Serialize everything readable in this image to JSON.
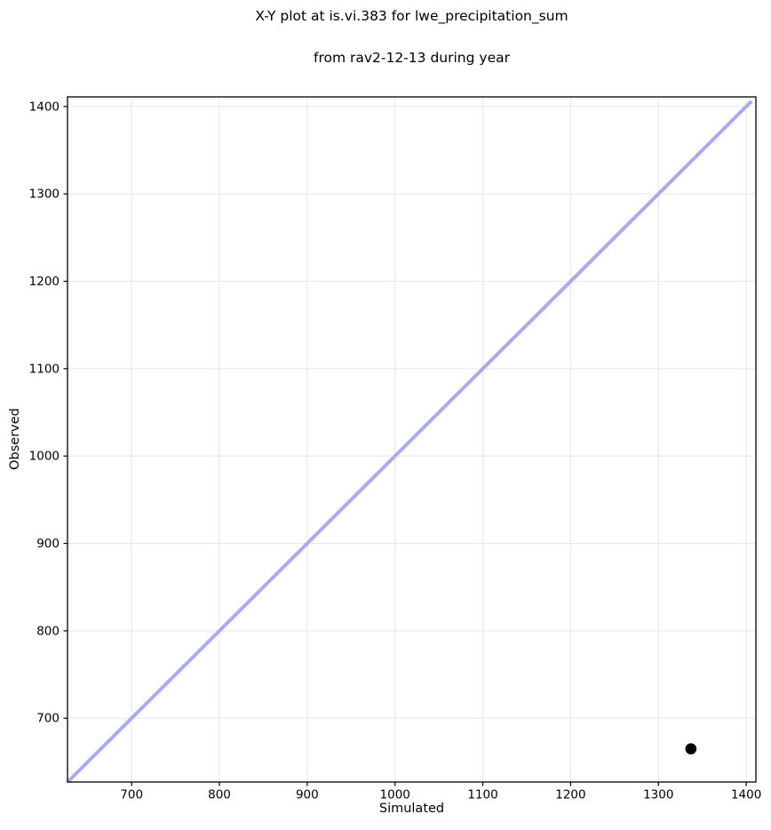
{
  "figure": {
    "title_lines": [
      "X-Y plot at is.vi.383 for lwe_precipitation_sum",
      "from rav2-12-13 during year"
    ]
  },
  "chart_data": {
    "type": "scatter",
    "title": "X-Y plot at is.vi.383 for lwe_precipitation_sum\nfrom rav2-12-13 during year",
    "xlabel": "Simulated",
    "ylabel": "Observed",
    "xlim": [
      627,
      1411
    ],
    "ylim": [
      627,
      1411
    ],
    "xticks": [
      700,
      800,
      900,
      1000,
      1100,
      1200,
      1300,
      1400
    ],
    "yticks": [
      700,
      800,
      900,
      1000,
      1100,
      1200,
      1300,
      1400
    ],
    "grid": true,
    "legend": "none",
    "series": [
      {
        "name": "identity-line",
        "type": "line",
        "x": [
          627,
          1406
        ],
        "y": [
          627,
          1406
        ],
        "color": "#a8abf3",
        "line_width": 4
      },
      {
        "name": "observations",
        "type": "scatter",
        "points": [
          [
            1337,
            665
          ]
        ],
        "color": "#000000",
        "marker_radius": 6.3
      }
    ],
    "colors": {
      "background": "#ffffff",
      "grid": "#e8e8e8",
      "spine": "#000000",
      "tick": "#000000"
    }
  }
}
